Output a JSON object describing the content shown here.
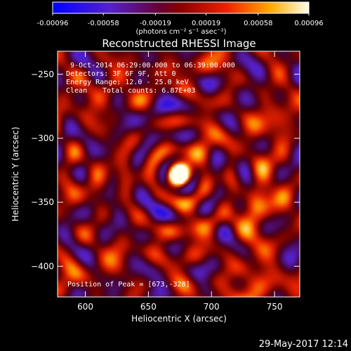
{
  "chart_data": {
    "type": "heatmap",
    "title": "Reconstructed RHESSI Image",
    "xlabel": "Heliocentric X (arcsec)",
    "ylabel": "Heliocentric Y (arcsec)",
    "xlim": [
      578,
      770
    ],
    "ylim": [
      -424,
      -232
    ],
    "x_ticks": [
      600,
      650,
      700,
      750
    ],
    "y_ticks": [
      -250,
      -300,
      -350,
      -400
    ],
    "colorbar": {
      "range": [
        -0.00096,
        0.00096
      ],
      "ticks": [
        -0.00096,
        -0.00058,
        -0.00019,
        0.00019,
        0.00058,
        0.00096
      ],
      "tick_labels": [
        "-0.00096",
        "-0.00058",
        "-0.00019",
        "0.00019",
        "0.00058",
        "0.00096"
      ],
      "label": "(photons cm⁻² s⁻¹ asec⁻²)",
      "colormap": "blue-purple-red-yellow-white"
    },
    "annotations": {
      "time_range": "9-Oct-2014 06:29:00.000 to 06:39:00.000",
      "detectors": "Detectors: 3F 6F 9F, Att 0",
      "energy_range": "Energy Range: 12.0 - 25.0 keV",
      "method": "Clean",
      "total_counts": "Total counts: 6.87E+03",
      "peak_position": "Position of Peak = [673,-328]"
    },
    "peak": {
      "x": 673,
      "y": -328
    }
  },
  "footer": {
    "date": "29-May-2017 12:14"
  }
}
